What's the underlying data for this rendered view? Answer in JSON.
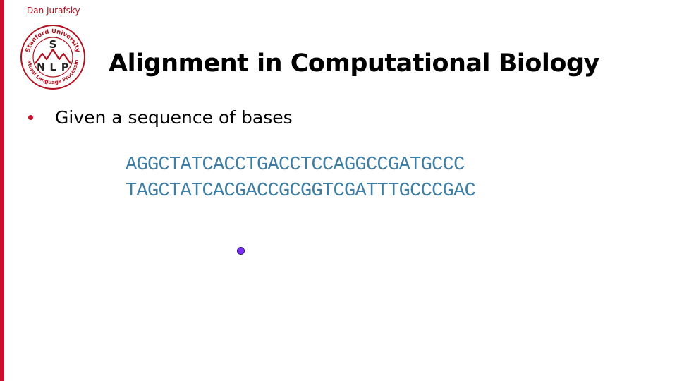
{
  "slide": {
    "author": "Dan Jurafsky",
    "title": "Alignment in Computational Biology",
    "bullets": [
      {
        "text": "Given a sequence of bases"
      }
    ],
    "sequences": [
      "AGGCTATCACCTGACCTCCAGGCCGATGCCC",
      "TAGCTATCACGACCGCGGTCGATTTGCCCGAC"
    ]
  },
  "logo": {
    "arc_top": "Stanford University",
    "arc_bottom": "Natural Language Processing",
    "letters": [
      "S",
      "N",
      "L",
      "P"
    ]
  },
  "colors": {
    "accent_red": "#c8102e",
    "sequence_blue": "#3f7fa5",
    "pointer_purple": "#7b2ff2"
  }
}
